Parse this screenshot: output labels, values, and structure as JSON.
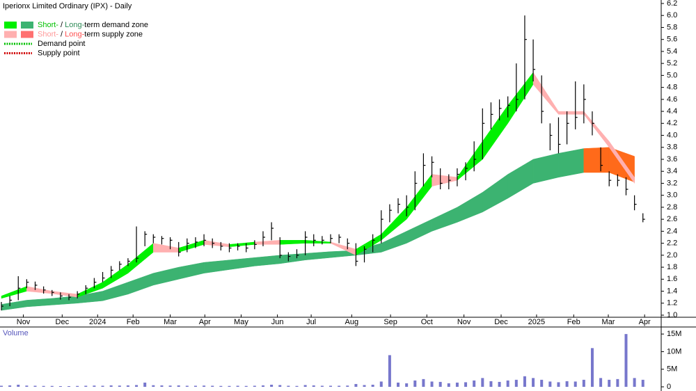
{
  "chart_data": [
    {
      "type": "candlestick",
      "title": "Iperionx Limited Ordinary (IPX) - Daily",
      "xlim": [
        0,
        78
      ],
      "xticks": [
        {
          "value": 2.6,
          "label": "Nov"
        },
        {
          "value": 7.2,
          "label": "Dec"
        },
        {
          "value": 11.4,
          "label": "2024"
        },
        {
          "value": 15.6,
          "label": "Feb"
        },
        {
          "value": 20,
          "label": "Mar"
        },
        {
          "value": 24.1,
          "label": "Apr"
        },
        {
          "value": 28.4,
          "label": "May"
        },
        {
          "value": 32.7,
          "label": "Jun"
        },
        {
          "value": 36.7,
          "label": "Jul"
        },
        {
          "value": 41.5,
          "label": "Aug"
        },
        {
          "value": 46.1,
          "label": "Sep"
        },
        {
          "value": 50.4,
          "label": "Oct"
        },
        {
          "value": 54.8,
          "label": "Nov"
        },
        {
          "value": 59.2,
          "label": "Dec"
        },
        {
          "value": 63.4,
          "label": "2025"
        },
        {
          "value": 67.8,
          "label": "Feb"
        },
        {
          "value": 71.9,
          "label": "Mar"
        },
        {
          "value": 76.2,
          "label": "Apr"
        }
      ],
      "ylim": [
        1.0,
        6.2
      ],
      "yticks": [
        {
          "value": 1.0,
          "label": "1.0"
        },
        1.2,
        1.4,
        1.6,
        1.8,
        {
          "value": 2.0,
          "label": "2.0"
        },
        2.2,
        2.4,
        2.6,
        2.8,
        {
          "value": 3.0,
          "label": "3.0"
        },
        3.2,
        3.4,
        3.6,
        3.8,
        {
          "value": 4.0,
          "label": "4.0"
        },
        4.2,
        4.4,
        4.6,
        4.8,
        {
          "value": 5.0,
          "label": "5.0"
        },
        5.2,
        5.4,
        5.6,
        5.8,
        {
          "value": 6.0,
          "label": "6.0"
        },
        6.2
      ],
      "color": "#000000",
      "high": [
        1.22,
        1.32,
        1.65,
        1.6,
        1.56,
        1.48,
        1.42,
        1.38,
        1.35,
        1.4,
        1.5,
        1.62,
        1.72,
        1.82,
        1.9,
        1.95,
        2.48,
        2.4,
        2.35,
        2.32,
        2.3,
        2.22,
        2.28,
        2.3,
        2.35,
        2.28,
        2.22,
        2.2,
        2.2,
        2.2,
        2.25,
        2.4,
        2.55,
        2.3,
        2.05,
        2.1,
        2.4,
        2.35,
        2.32,
        2.35,
        2.35,
        2.28,
        2.2,
        2.15,
        2.35,
        2.75,
        2.85,
        2.95,
        3.0,
        3.4,
        3.7,
        3.65,
        3.45,
        3.35,
        3.45,
        3.55,
        3.9,
        4.45,
        4.55,
        4.6,
        4.65,
        5.2,
        6.0,
        5.6,
        5.0,
        4.2,
        4.3,
        4.4,
        4.9,
        4.85,
        4.4,
        3.8,
        3.4,
        3.35,
        3.3,
        3.0,
        2.7
      ],
      "low": [
        1.08,
        1.15,
        1.25,
        1.45,
        1.42,
        1.36,
        1.32,
        1.26,
        1.25,
        1.28,
        1.35,
        1.45,
        1.55,
        1.62,
        1.75,
        1.82,
        1.88,
        2.15,
        2.2,
        2.18,
        2.1,
        1.98,
        2.05,
        2.12,
        2.15,
        2.12,
        2.08,
        2.05,
        2.08,
        2.05,
        2.1,
        2.15,
        2.25,
        1.95,
        1.9,
        1.95,
        2.0,
        2.15,
        2.18,
        2.2,
        2.2,
        2.1,
        1.82,
        1.88,
        2.05,
        2.2,
        2.55,
        2.7,
        2.65,
        2.75,
        3.15,
        3.3,
        3.1,
        3.1,
        3.15,
        3.25,
        3.4,
        3.6,
        4.1,
        4.25,
        4.3,
        4.4,
        4.6,
        4.9,
        4.2,
        3.75,
        3.7,
        3.85,
        4.1,
        4.2,
        4.0,
        3.4,
        3.15,
        3.15,
        3.0,
        2.75,
        2.55
      ],
      "close": [
        1.15,
        1.25,
        1.45,
        1.55,
        1.5,
        1.42,
        1.38,
        1.32,
        1.3,
        1.35,
        1.45,
        1.55,
        1.62,
        1.75,
        1.85,
        1.9,
        1.95,
        2.35,
        2.3,
        2.28,
        2.25,
        2.05,
        2.2,
        2.22,
        2.25,
        2.2,
        2.15,
        2.12,
        2.15,
        2.12,
        2.18,
        2.3,
        2.45,
        2,
        1.98,
        2,
        2.3,
        2.25,
        2.25,
        2.28,
        2.3,
        2.2,
        1.9,
        2.1,
        2.25,
        2.6,
        2.75,
        2.85,
        2.8,
        3.2,
        3.5,
        3.55,
        3.2,
        3.25,
        3.35,
        3.45,
        3.6,
        4.2,
        4.35,
        4.45,
        4.5,
        4.6,
        5.6,
        5.1,
        4.4,
        4,
        3.85,
        4.2,
        4.3,
        4.6,
        4.2,
        3.5,
        3.25,
        3.25,
        3.1,
        2.85,
        2.6
      ],
      "zones": [
        {
          "x": [
            0,
            3,
            6,
            9,
            12,
            15,
            18,
            21,
            24,
            27,
            30,
            33,
            36,
            39,
            42,
            45,
            48,
            51,
            54,
            57,
            60,
            63,
            66,
            69,
            72,
            75
          ],
          "upper": [
            1.18,
            1.25,
            1.28,
            1.32,
            1.4,
            1.55,
            1.7,
            1.8,
            1.88,
            1.92,
            1.96,
            2.0,
            2.03,
            2.06,
            2.08,
            2.2,
            2.4,
            2.6,
            2.8,
            3.05,
            3.35,
            3.6,
            3.7,
            3.78,
            3.8,
            3.65
          ],
          "lower": [
            1.08,
            1.14,
            1.17,
            1.2,
            1.24,
            1.35,
            1.5,
            1.6,
            1.7,
            1.76,
            1.82,
            1.86,
            1.92,
            1.96,
            2.0,
            2.05,
            2.2,
            2.4,
            2.55,
            2.72,
            2.95,
            3.2,
            3.3,
            3.38,
            3.38,
            3.22
          ],
          "state": [
            "d",
            "d",
            "d",
            "d",
            "d",
            "d",
            "d",
            "d",
            "d",
            "d",
            "d",
            "d",
            "d",
            "d",
            "d",
            "d",
            "d",
            "d",
            "d",
            "d",
            "d",
            "d",
            "d",
            "d",
            "s",
            "s"
          ],
          "demand_color": "#3cb371",
          "supply_color": "#ff6a1a"
        },
        {
          "x": [
            0,
            3,
            6,
            9,
            12,
            15,
            18,
            21,
            24,
            27,
            30,
            33,
            36,
            39,
            42,
            45,
            48,
            51,
            54,
            57,
            60,
            63,
            66,
            69,
            72,
            75
          ],
          "upper": [
            1.32,
            1.48,
            1.4,
            1.35,
            1.55,
            1.85,
            2.2,
            2.12,
            2.25,
            2.18,
            2.22,
            2.25,
            2.25,
            2.22,
            2.1,
            2.35,
            2.8,
            3.35,
            3.3,
            3.9,
            4.5,
            5.05,
            4.4,
            4.4,
            3.9,
            3.3
          ],
          "lower": [
            1.28,
            1.4,
            1.36,
            1.3,
            1.45,
            1.7,
            2.05,
            2.05,
            2.18,
            2.14,
            2.18,
            2.18,
            2.2,
            2.2,
            2.0,
            2.25,
            2.6,
            3.15,
            3.25,
            3.6,
            4.2,
            4.85,
            4.35,
            4.35,
            3.8,
            3.2
          ],
          "state": [
            "s",
            "d",
            "s",
            "s",
            "d",
            "d",
            "d",
            "s",
            "d",
            "s",
            "d",
            "s",
            "d",
            "d",
            "s",
            "d",
            "d",
            "d",
            "s",
            "d",
            "d",
            "d",
            "s",
            "s",
            "s",
            "s"
          ],
          "demand_color": "#00f000",
          "supply_color": "#ffb0b0"
        }
      ],
      "legend": [
        {
          "swatches": [
            "#00f000",
            "#3cb371"
          ],
          "parts": [
            "Short-",
            " / ",
            "Long-",
            "term demand zone"
          ],
          "part_colors": [
            "#00c000",
            "#000000",
            "#2e8b57",
            "#000000"
          ]
        },
        {
          "swatches": [
            "#ffb0b0",
            "#ff7070"
          ],
          "parts": [
            "Short-",
            " / ",
            "Long-",
            "term supply zone"
          ],
          "part_colors": [
            "#ff9a9a",
            "#000000",
            "#ff5050",
            "#000000"
          ]
        },
        {
          "line": "#00c000",
          "parts": [
            "Demand point"
          ],
          "part_colors": [
            "#000000"
          ]
        },
        {
          "line": "#d00000",
          "parts": [
            "Supply point"
          ],
          "part_colors": [
            "#000000"
          ]
        }
      ]
    },
    {
      "type": "bar",
      "label": "Volume",
      "color": "#7777cc",
      "xlim": [
        0,
        78
      ],
      "ylim": [
        0,
        17000000
      ],
      "yticks": [
        0,
        {
          "value": 5000000,
          "label": "5M"
        },
        {
          "value": 10000000,
          "label": "10M"
        },
        {
          "value": 15000000,
          "label": "15M"
        }
      ],
      "values": [
        300000,
        400000,
        600000,
        350000,
        300000,
        250000,
        250000,
        200000,
        200000,
        250000,
        300000,
        350000,
        300000,
        400000,
        350000,
        400000,
        500000,
        1200000,
        450000,
        400000,
        350000,
        400000,
        300000,
        300000,
        350000,
        300000,
        250000,
        250000,
        300000,
        250000,
        300000,
        400000,
        600000,
        500000,
        300000,
        250000,
        500000,
        400000,
        300000,
        300000,
        300000,
        350000,
        800000,
        500000,
        600000,
        1500000,
        9000000,
        1200000,
        1000000,
        1800000,
        2200000,
        1500000,
        1400000,
        1000000,
        1200000,
        1300000,
        1800000,
        2500000,
        1600000,
        1400000,
        1800000,
        2000000,
        3000000,
        2500000,
        2000000,
        1500000,
        1300000,
        1600000,
        1500000,
        2000000,
        11000000,
        2500000,
        2000000,
        2200000,
        15000000,
        2500000,
        2000000
      ]
    }
  ]
}
